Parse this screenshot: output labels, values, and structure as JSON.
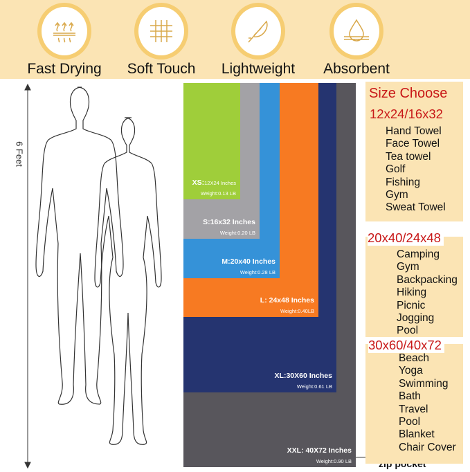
{
  "features": [
    {
      "label": "Fast Drying",
      "icon": "heat-waves-icon"
    },
    {
      "label": "Soft Touch",
      "icon": "fabric-weave-icon"
    },
    {
      "label": "Lightweight",
      "icon": "feather-icon"
    },
    {
      "label": "Absorbent",
      "icon": "water-drop-icon"
    }
  ],
  "height_label": "6 Feet",
  "sizes": [
    {
      "name": "XS:",
      "dim": "12X24 Inches",
      "weight": "Weight:0.13 LB",
      "color": "#9fce3a"
    },
    {
      "name": "S:16x32 Inches",
      "weight": "Weight:0.20 LB",
      "color": "#a3a2a6"
    },
    {
      "name": "M:20x40 Inches",
      "weight": "Weight:0.28 LB",
      "color": "#3592d8"
    },
    {
      "name": "L: 24x48 Inches",
      "weight": "Weight:0.40LB",
      "color": "#f77a22"
    },
    {
      "name": "XL:30X60 Inches",
      "weight": "Weight:0.61 LB",
      "color": "#253470"
    },
    {
      "name": "XXL: 40X72 Inches",
      "weight": "Weight:0.90 LB",
      "color": "#58565c"
    }
  ],
  "zip_label": "zip pocket",
  "size_choose": "Size Choose",
  "groups": [
    {
      "heading": "12x24/16x32",
      "items": [
        "Hand Towel",
        "Face Towel",
        "Tea towel",
        "Golf",
        "Fishing",
        "Gym",
        "Sweat Towel"
      ]
    },
    {
      "heading": "20x40/24x48",
      "items": [
        "Camping",
        "Gym",
        "Backpacking",
        "Hiking",
        "Picnic",
        "Jogging",
        "Pool"
      ]
    },
    {
      "heading": "30x60/40x72",
      "items": [
        "Beach",
        "Yoga",
        "Swimming",
        "Bath",
        "Travel",
        "Pool",
        "Blanket",
        "Chair Cover"
      ]
    }
  ]
}
